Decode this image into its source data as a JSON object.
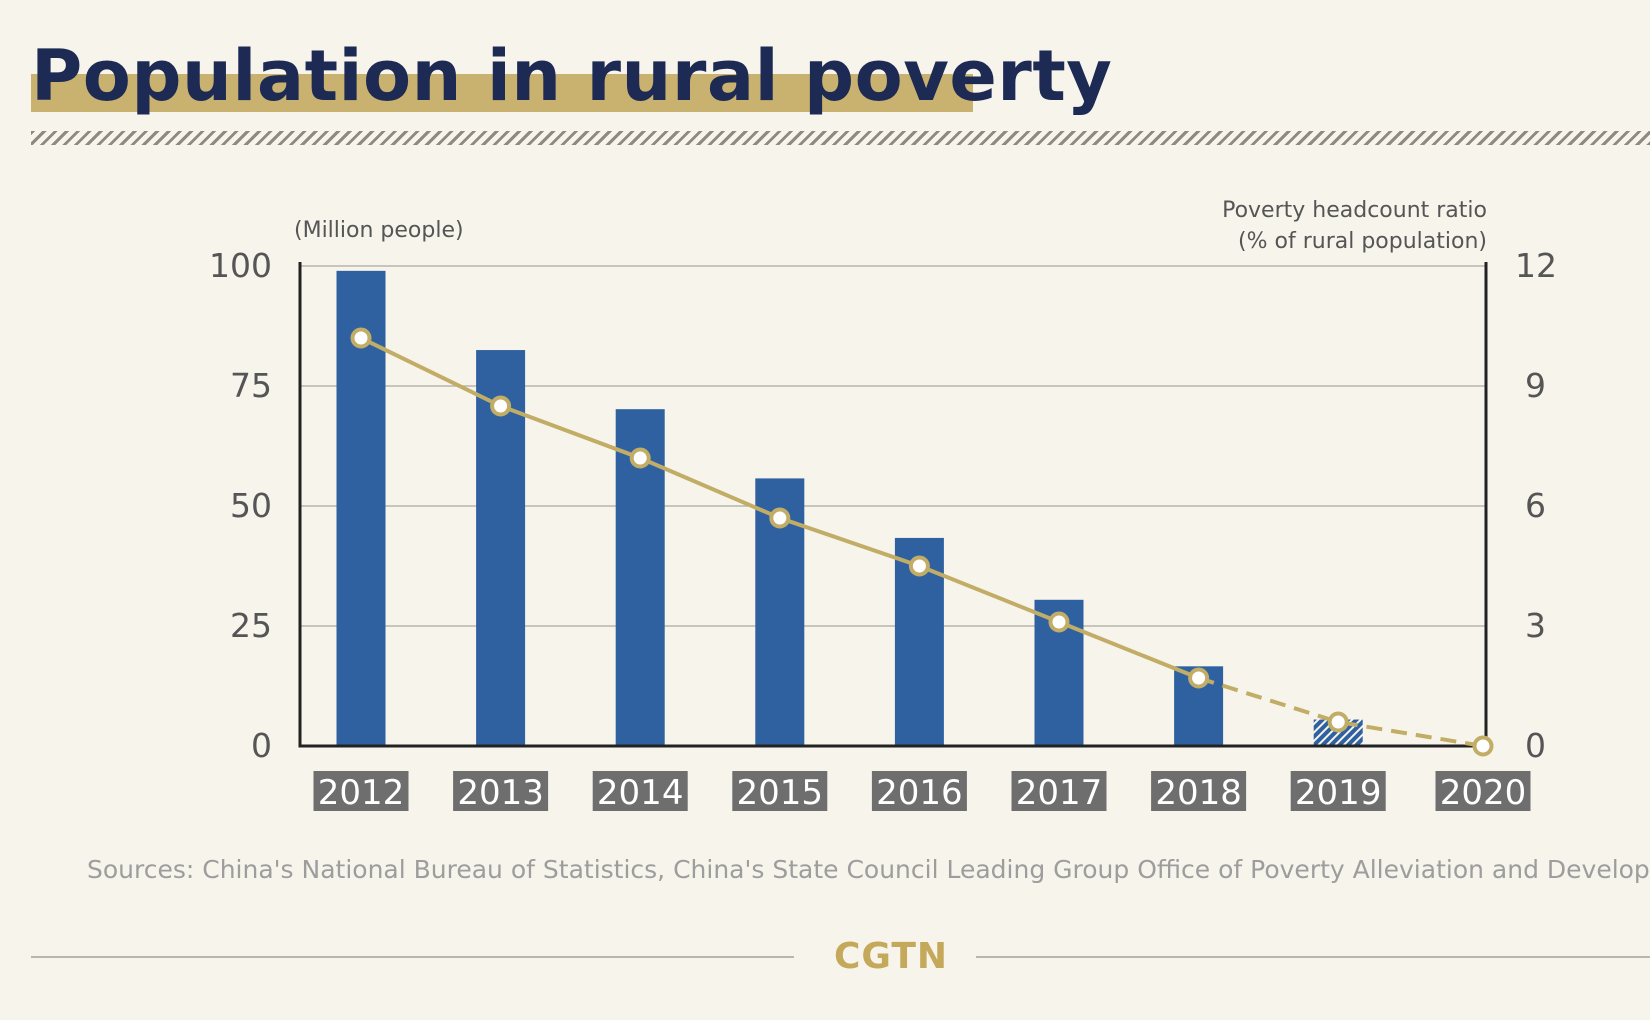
{
  "title": "Population in rural poverty",
  "source": "Sources: China's National Bureau of Statistics, China's State Council Leading Group Office of Poverty Alleviation and Development",
  "brand": "CGTN",
  "colors": {
    "background": "#f7f4ec",
    "title_text": "#1c2a54",
    "title_band": "#c9b16f",
    "bar": "#2f61a0",
    "line": "#c2ad66",
    "category_label_bg": "#6e6e6e",
    "brand": "#c4a95a"
  },
  "chart_data": {
    "type": "bar",
    "combo": "bar + line, dual y-axis",
    "categories": [
      "2012",
      "2013",
      "2014",
      "2015",
      "2016",
      "2017",
      "2018",
      "2019",
      "2020"
    ],
    "series": [
      {
        "axis": "left",
        "type": "bar",
        "values": [
          98.99,
          82.49,
          70.17,
          55.75,
          43.35,
          30.46,
          16.6,
          5.51,
          null
        ],
        "hatched_categories": [
          "2019"
        ]
      },
      {
        "axis": "right",
        "type": "line",
        "values": [
          10.2,
          8.5,
          7.2,
          5.7,
          4.5,
          3.1,
          1.7,
          0.6,
          0
        ],
        "dashed_from_category": "2018"
      }
    ],
    "ylabel_left": "(Million people)",
    "ylabel_right": [
      "Poverty headcount ratio",
      "(% of rural population)"
    ],
    "ylim_left": [
      0,
      100
    ],
    "ylim_right": [
      0,
      12
    ],
    "yticks_left": [
      "0",
      "25",
      "50",
      "75",
      "100"
    ],
    "yticks_right": [
      "0",
      "3",
      "6",
      "9",
      "12"
    ],
    "grid": "horizontal",
    "legend": "none"
  }
}
